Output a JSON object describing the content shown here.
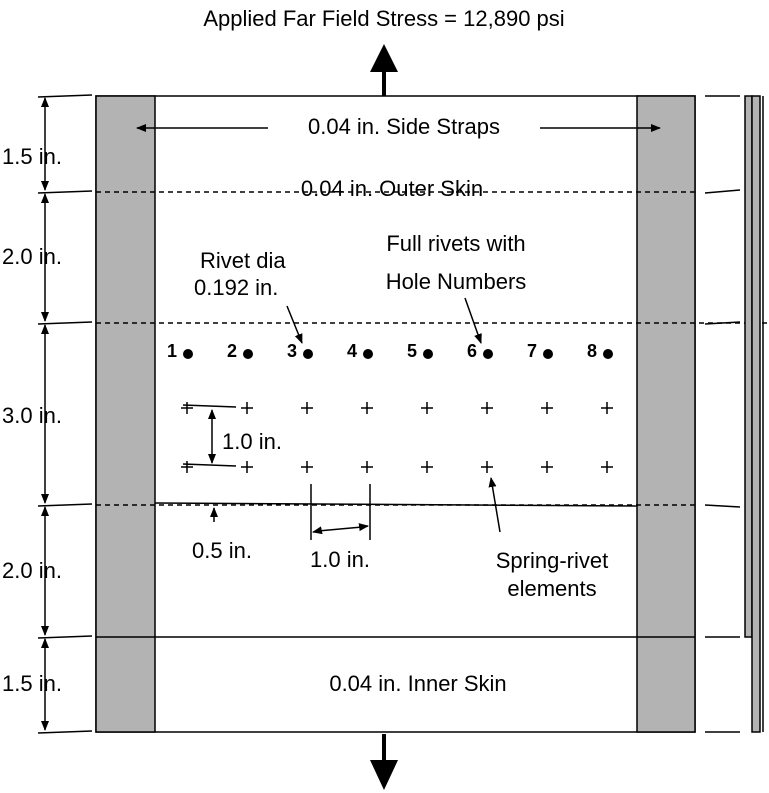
{
  "title": "Applied Far Field Stress = 12,890 psi",
  "labels": {
    "side_straps": "0.04 in. Side Straps",
    "outer_skin": "0.04 in. Outer Skin",
    "inner_skin": "0.04 in. Inner Skin",
    "rivet_dia": [
      "Rivet  dia",
      "0.192 in."
    ],
    "full_rivets": [
      "Full rivets with",
      "Hole Numbers"
    ],
    "spring": [
      "Spring-rivet",
      "elements"
    ]
  },
  "hole_numbers": [
    "1",
    "2",
    "3",
    "4",
    "5",
    "6",
    "7",
    "8"
  ],
  "left_dims": [
    "1.5 in.",
    "2.0 in.",
    "3.0 in.",
    "2.0 in.",
    "1.5 in."
  ],
  "inner_dims": {
    "row_spacing": "1.0 in.",
    "edge": "0.5 in.",
    "col_spacing": "1.0 in."
  }
}
